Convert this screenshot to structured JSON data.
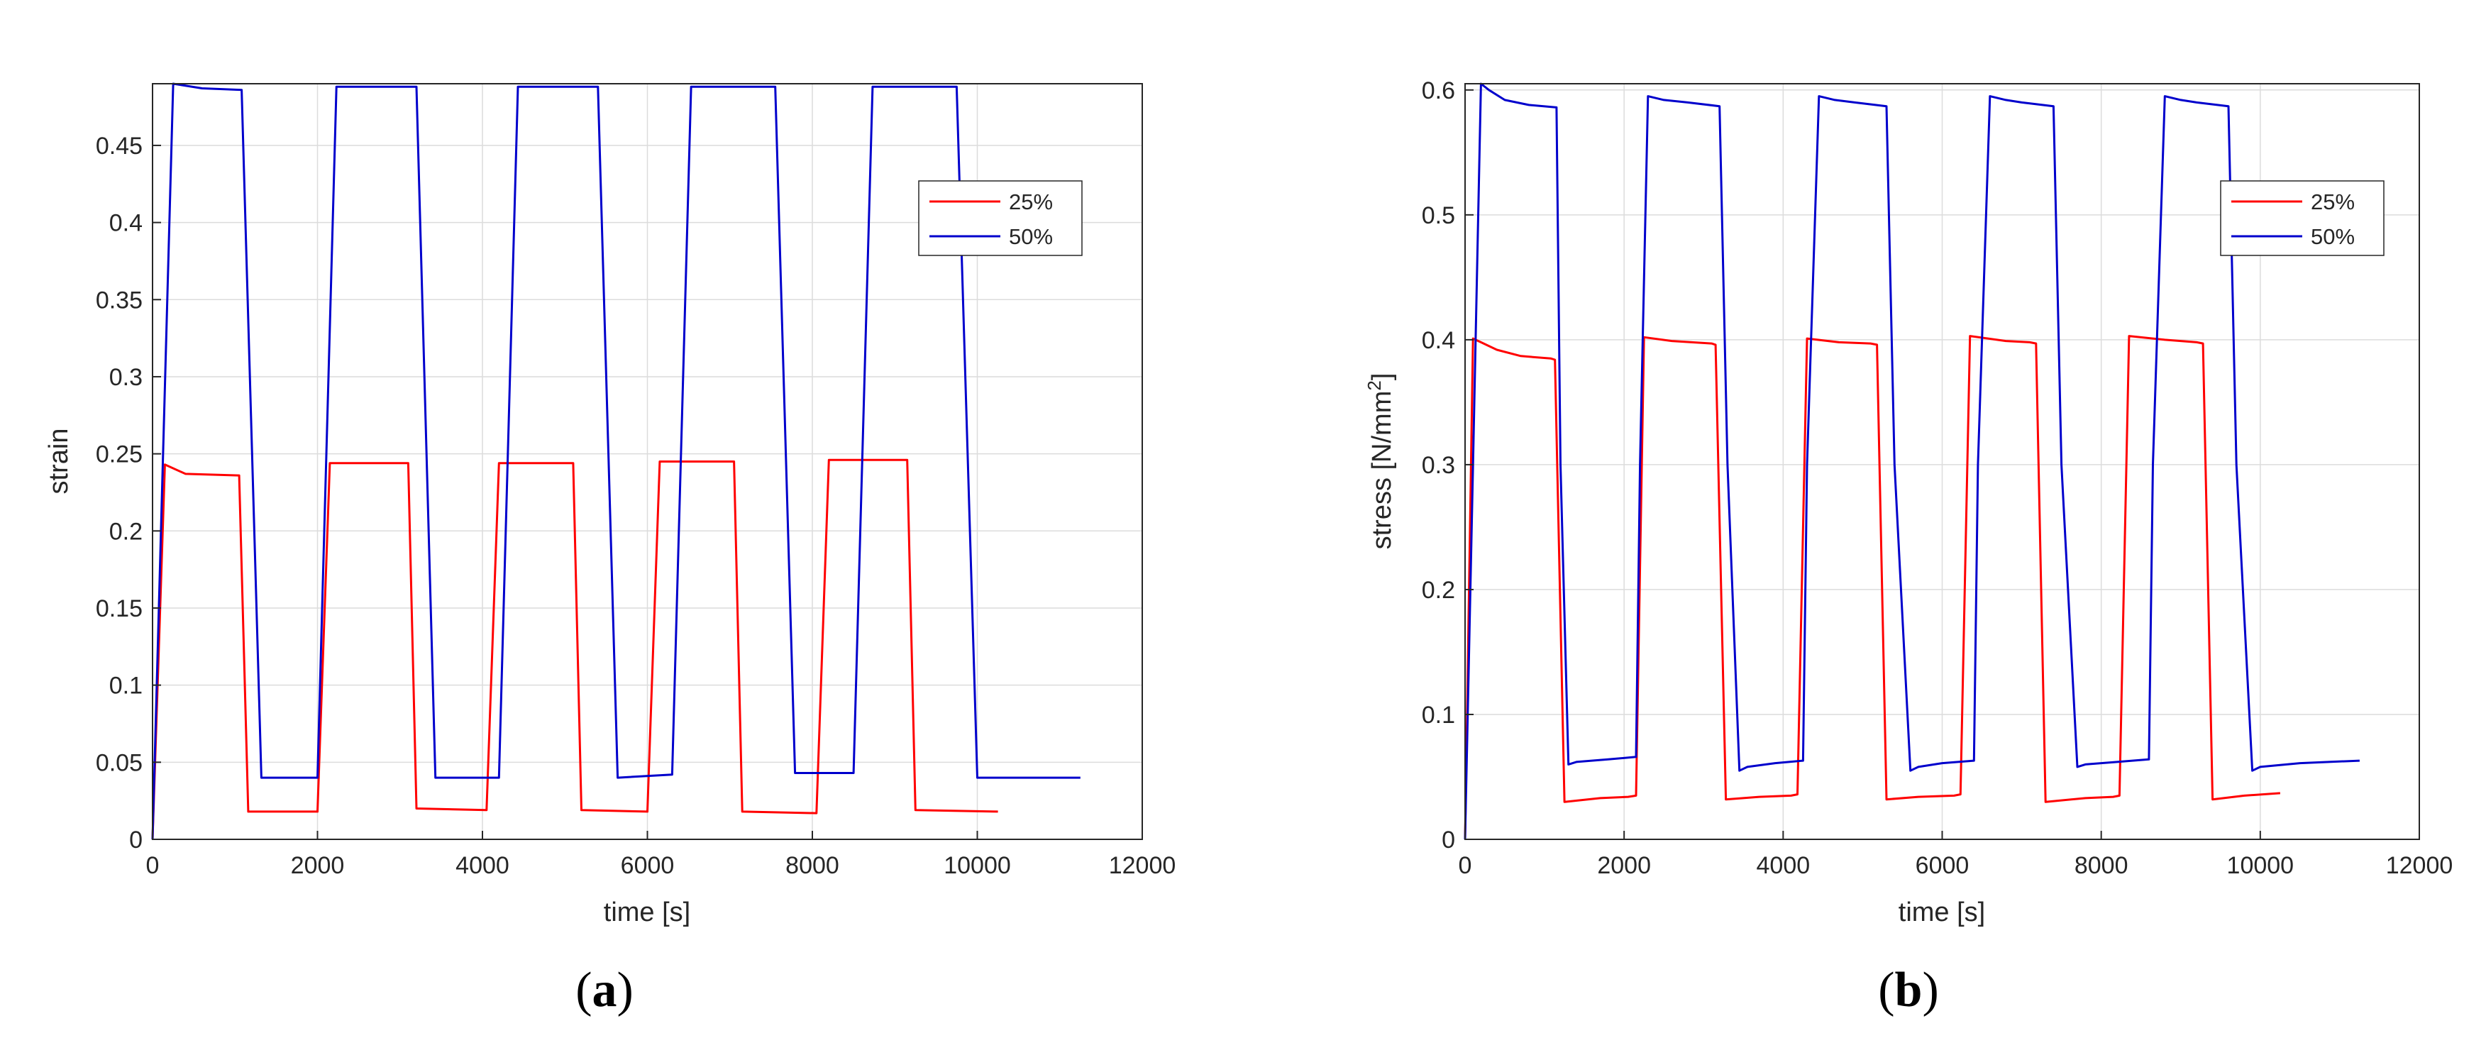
{
  "chart_data": [
    {
      "type": "line",
      "panel": "a",
      "caption_open": "(",
      "caption_letter": "a",
      "caption_close": ")",
      "xlabel": "time [s]",
      "ylabel": "strain",
      "ylabel_sup": "",
      "ylabel_tail": "",
      "xlim": [
        0,
        12000
      ],
      "ylim": [
        0,
        0.49
      ],
      "xticks": [
        0,
        2000,
        4000,
        6000,
        8000,
        10000,
        12000
      ],
      "xtick_labels": [
        "0",
        "2000",
        "4000",
        "6000",
        "8000",
        "10000",
        "12000"
      ],
      "yticks": [
        0,
        0.05,
        0.1,
        0.15,
        0.2,
        0.25,
        0.3,
        0.35,
        0.4,
        0.45
      ],
      "ytick_labels": [
        "0",
        "0.05",
        "0.1",
        "0.15",
        "0.2",
        "0.25",
        "0.3",
        "0.35",
        "0.4",
        "0.45"
      ],
      "grid": true,
      "legend_position": "top-right",
      "series": [
        {
          "name": "25%",
          "color": "#ff0000",
          "x": [
            0,
            150,
            400,
            1050,
            1160,
            2000,
            2150,
            3100,
            3200,
            4050,
            4200,
            5100,
            5200,
            6000,
            6150,
            7050,
            7150,
            8050,
            8200,
            9150,
            9250,
            10250
          ],
          "y": [
            0.0,
            0.243,
            0.237,
            0.236,
            0.018,
            0.018,
            0.244,
            0.244,
            0.02,
            0.019,
            0.244,
            0.244,
            0.019,
            0.018,
            0.245,
            0.245,
            0.018,
            0.017,
            0.246,
            0.246,
            0.019,
            0.018
          ]
        },
        {
          "name": "50%",
          "color": "#0000cc",
          "x": [
            0,
            250,
            600,
            1080,
            1320,
            2000,
            2230,
            3200,
            3430,
            4200,
            4430,
            5400,
            5640,
            6300,
            6530,
            7550,
            7790,
            8500,
            8730,
            9750,
            10000,
            11250
          ],
          "y": [
            0.0,
            0.49,
            0.487,
            0.486,
            0.04,
            0.04,
            0.488,
            0.488,
            0.04,
            0.04,
            0.488,
            0.488,
            0.04,
            0.042,
            0.488,
            0.488,
            0.043,
            0.043,
            0.488,
            0.488,
            0.04,
            0.04
          ]
        }
      ]
    },
    {
      "type": "line",
      "panel": "b",
      "caption_open": "(",
      "caption_letter": "b",
      "caption_close": ")",
      "xlabel": "time [s]",
      "ylabel": "stress [N/mm",
      "ylabel_sup": "2",
      "ylabel_tail": "]",
      "xlim": [
        0,
        12000
      ],
      "ylim": [
        0,
        0.605
      ],
      "xticks": [
        0,
        2000,
        4000,
        6000,
        8000,
        10000,
        12000
      ],
      "xtick_labels": [
        "0",
        "2000",
        "4000",
        "6000",
        "8000",
        "10000",
        "12000"
      ],
      "yticks": [
        0,
        0.1,
        0.2,
        0.3,
        0.4,
        0.5,
        0.6
      ],
      "ytick_labels": [
        "0",
        "0.1",
        "0.2",
        "0.3",
        "0.4",
        "0.5",
        "0.6"
      ],
      "grid": true,
      "legend_position": "top-right",
      "series": [
        {
          "name": "25%",
          "color": "#ff0000",
          "x": [
            0,
            100,
            200,
            400,
            700,
            1080,
            1130,
            1250,
            1700,
            2050,
            2150,
            2250,
            2600,
            3100,
            3150,
            3280,
            3700,
            4100,
            4180,
            4300,
            4700,
            5100,
            5180,
            5300,
            5700,
            6150,
            6230,
            6350,
            6800,
            7100,
            7180,
            7300,
            7800,
            8150,
            8230,
            8350,
            8800,
            9200,
            9280,
            9400,
            9800,
            10250
          ],
          "y": [
            0.0,
            0.401,
            0.398,
            0.392,
            0.387,
            0.385,
            0.384,
            0.03,
            0.033,
            0.034,
            0.035,
            0.402,
            0.399,
            0.397,
            0.396,
            0.032,
            0.034,
            0.035,
            0.036,
            0.401,
            0.398,
            0.397,
            0.396,
            0.032,
            0.034,
            0.035,
            0.036,
            0.403,
            0.399,
            0.398,
            0.397,
            0.03,
            0.033,
            0.034,
            0.035,
            0.403,
            0.4,
            0.398,
            0.397,
            0.032,
            0.035,
            0.037
          ]
        },
        {
          "name": "50%",
          "color": "#0000cc",
          "x": [
            0,
            100,
            200,
            300,
            500,
            800,
            1150,
            1200,
            1300,
            1400,
            1800,
            2150,
            2200,
            2300,
            2500,
            2800,
            3200,
            3300,
            3450,
            3550,
            3900,
            4250,
            4300,
            4450,
            4650,
            4900,
            5300,
            5400,
            5600,
            5700,
            6000,
            6400,
            6450,
            6600,
            6800,
            7000,
            7400,
            7500,
            7700,
            7800,
            8200,
            8600,
            8650,
            8800,
            9000,
            9200,
            9600,
            9700,
            9900,
            10000,
            10500,
            11250
          ],
          "y": [
            0.0,
            0.3,
            0.605,
            0.6,
            0.592,
            0.588,
            0.586,
            0.3,
            0.06,
            0.062,
            0.064,
            0.066,
            0.3,
            0.595,
            0.592,
            0.59,
            0.587,
            0.3,
            0.055,
            0.058,
            0.061,
            0.063,
            0.3,
            0.595,
            0.592,
            0.59,
            0.587,
            0.3,
            0.055,
            0.058,
            0.061,
            0.063,
            0.3,
            0.595,
            0.592,
            0.59,
            0.587,
            0.3,
            0.058,
            0.06,
            0.062,
            0.064,
            0.3,
            0.595,
            0.592,
            0.59,
            0.587,
            0.3,
            0.055,
            0.058,
            0.061,
            0.063
          ]
        }
      ]
    }
  ]
}
